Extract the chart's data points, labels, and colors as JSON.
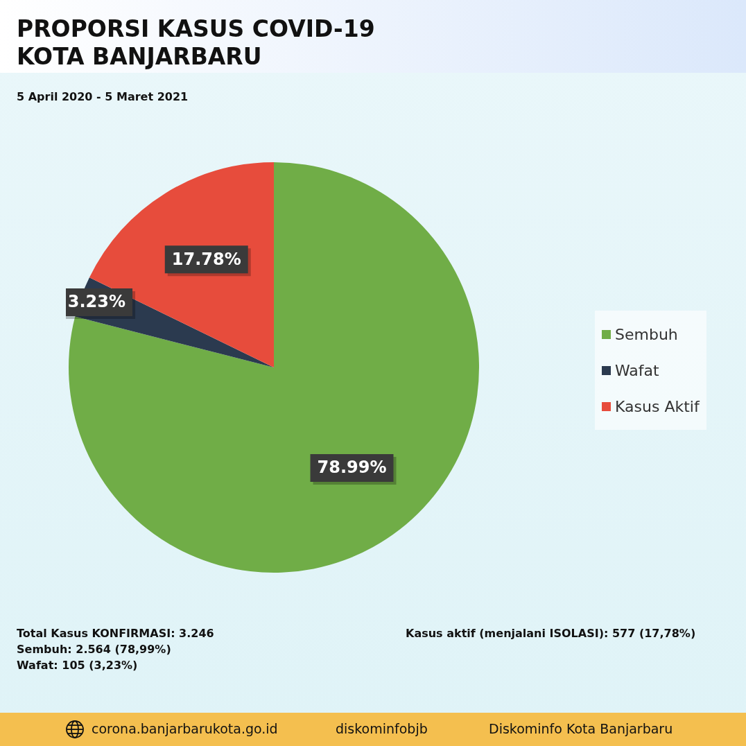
{
  "chart_data": {
    "type": "pie",
    "title": "PROPORSI KASUS COVID-19 KOTA BANJARBARU",
    "subtitle": "5 April 2020 - 5 Maret 2021",
    "categories": [
      "Sembuh",
      "Wafat",
      "Kasus Aktif"
    ],
    "values": [
      78.99,
      3.23,
      17.78
    ],
    "colors": [
      "#70ad47",
      "#2b3a4f",
      "#e74c3c"
    ],
    "value_labels": [
      "78.99%",
      "3.23%",
      "17.78%"
    ],
    "legend": "right",
    "annotations": [
      "Total Kasus KONFIRMASI: 3.246",
      "Sembuh: 2.564 (78,99%)",
      "Wafat: 105 (3,23%)",
      "Kasus aktif (menjalani ISOLASI): 577 (17,78%)",
      "corona.banjarbarukota.go.id",
      "diskominfobjb",
      "Diskominfo Kota Banjarbaru"
    ]
  }
}
